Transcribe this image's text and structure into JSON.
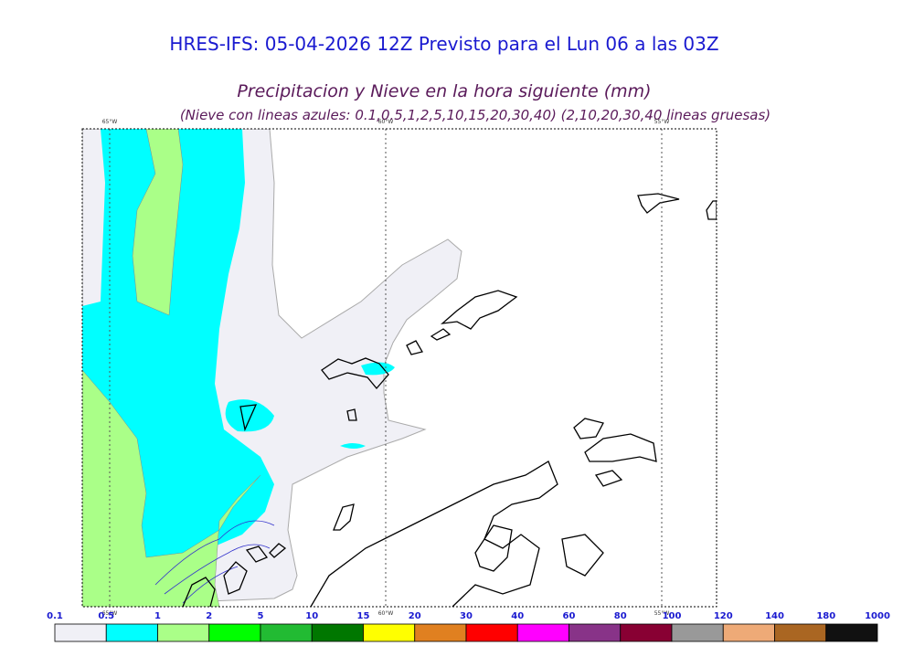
{
  "header": {
    "title": "HRES-IFS: 05-04-2026 12Z Previsto para el Lun 06 a las 03Z",
    "subtitle": "Precipitacion y Nieve en la hora siguiente (mm)",
    "note": "(Nieve con lineas azules: 0.1,0.5,1,2,5,10,15,20,30,40)  (2,10,20,30,40 lineas gruesas)"
  },
  "map": {
    "meridians": [
      "65°W",
      "60°W",
      "55°W"
    ]
  },
  "legend": {
    "bounds": [
      0.1,
      0.5,
      1,
      2,
      5,
      10,
      15,
      20,
      30,
      40,
      60,
      80,
      100,
      120,
      140,
      180,
      1000
    ],
    "colors": [
      "#f0f0f6",
      "#00ffff",
      "#aaff88",
      "#00ff00",
      "#22bb33",
      "#007700",
      "#ffff00",
      "#e08020",
      "#ff0000",
      "#ff00ff",
      "#883388",
      "#880033",
      "#999999",
      "#eeaa77",
      "#aa6622",
      "#111111"
    ]
  }
}
